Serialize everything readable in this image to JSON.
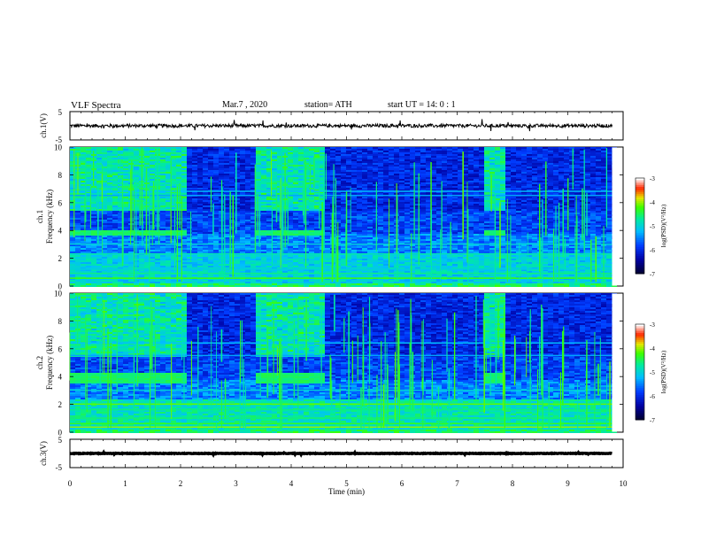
{
  "header": {
    "title": "VLF  Spectra",
    "date": "Mar.7  , 2020",
    "station": "station= ATH",
    "start": "start  UT  =   14: 0  : 1"
  },
  "chart_data": [
    {
      "type": "line",
      "name": "ch1-waveform",
      "ylabel": "ch.1(V)",
      "yticks": [
        "5",
        "-5"
      ],
      "ylim": [
        -5,
        5
      ],
      "xlim": [
        0,
        10
      ],
      "note": "near-zero noisy trace",
      "trace_center": 0,
      "trace_jitter": 0.6,
      "trace_end": 9.8,
      "color": "#000000"
    },
    {
      "type": "heatmap",
      "name": "ch1-spectrogram",
      "ylabel": "ch.1\nFrequency  (kHz)",
      "ylabel_line1": "ch.1",
      "ylabel_line2": "Frequency  (kHz)",
      "ylim": [
        0,
        10
      ],
      "yticks": [
        "0",
        "2",
        "4",
        "6",
        "8",
        "10"
      ],
      "xlim": [
        0,
        10
      ],
      "data_end": 9.8,
      "colorbar": {
        "label": "log(PSD)(V²/Hz)",
        "range": [
          -7,
          -3
        ],
        "ticks": [
          "-3",
          "-4",
          "-5",
          "-6",
          "-7"
        ]
      },
      "bursts": [
        [
          0.0,
          2.1
        ],
        [
          3.35,
          4.6
        ],
        [
          7.45,
          7.8
        ]
      ],
      "burst_band_khz": [
        3.7,
        4.1
      ]
    },
    {
      "type": "heatmap",
      "name": "ch2-spectrogram",
      "ylabel_line1": "ch.2",
      "ylabel_line2": "Frequency  (kHz)",
      "ylim": [
        0,
        10
      ],
      "yticks": [
        "0",
        "2",
        "4",
        "6",
        "8",
        "10"
      ],
      "xlim": [
        0,
        10
      ],
      "data_end": 9.8,
      "colorbar": {
        "label": "log(PSD)(V²/Hz)",
        "range": [
          -7,
          -3
        ],
        "ticks": [
          "-3",
          "-4",
          "-5",
          "-6",
          "-7"
        ]
      },
      "bursts": [
        [
          0.0,
          2.1
        ],
        [
          3.35,
          4.6
        ],
        [
          7.45,
          7.8
        ]
      ],
      "burst_band_khz": [
        3.6,
        4.3
      ]
    },
    {
      "type": "line",
      "name": "ch3-waveform",
      "ylabel": "ch.3(V)",
      "yticks": [
        "5",
        "-5"
      ],
      "ylim": [
        -5,
        5
      ],
      "xlim": [
        0,
        10
      ],
      "trace_center": 0,
      "trace_jitter": 0.1,
      "trace_end": 9.8,
      "color": "#000000"
    }
  ],
  "xaxis": {
    "label": "Time  (min)",
    "ticks": [
      "0",
      "1",
      "2",
      "3",
      "4",
      "5",
      "6",
      "7",
      "8",
      "9",
      "10"
    ]
  }
}
